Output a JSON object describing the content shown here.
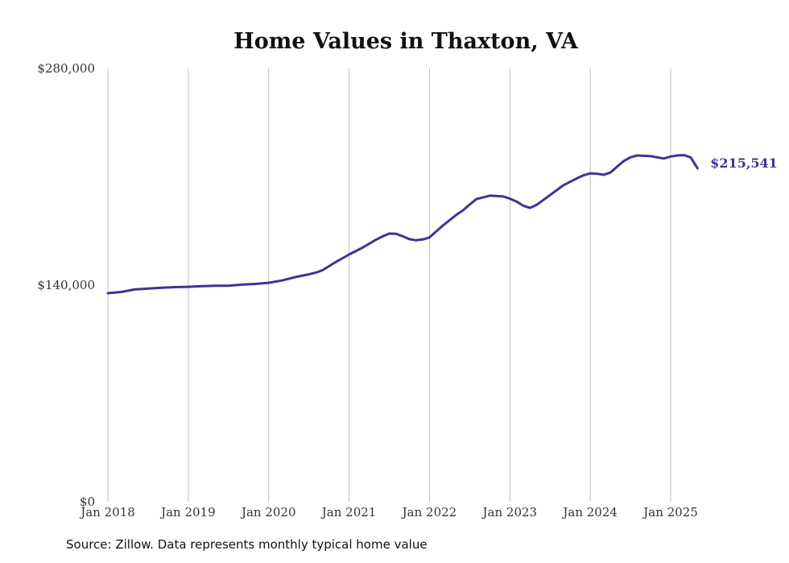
{
  "chart_data": {
    "type": "line",
    "title": "Home Values in Thaxton, VA",
    "xlabel": "",
    "ylabel": "",
    "ylim": [
      0,
      280000
    ],
    "y_ticks": [
      0,
      140000,
      280000
    ],
    "y_tick_labels": [
      "$0",
      "$140,000",
      "$280,000"
    ],
    "x_ticks": [
      "2018-01",
      "2019-01",
      "2020-01",
      "2021-01",
      "2022-01",
      "2023-01",
      "2024-01",
      "2025-01"
    ],
    "x_tick_labels": [
      "Jan 2018",
      "Jan 2019",
      "Jan 2020",
      "Jan 2021",
      "Jan 2022",
      "Jan 2023",
      "Jan 2024",
      "Jan 2025"
    ],
    "grid": "vertical",
    "line_color": "#3d3590",
    "end_label": "$215,541",
    "series": [
      {
        "x": [
          "2018-01",
          "2018-03",
          "2018-05",
          "2018-07",
          "2018-09",
          "2018-11",
          "2019-01",
          "2019-03",
          "2019-05",
          "2019-07",
          "2019-09",
          "2019-11",
          "2020-01",
          "2020-03",
          "2020-05",
          "2020-07",
          "2020-08",
          "2020-09",
          "2020-11",
          "2021-01",
          "2021-03",
          "2021-05",
          "2021-06",
          "2021-07",
          "2021-08",
          "2021-09",
          "2021-10",
          "2021-11",
          "2021-12",
          "2022-01",
          "2022-03",
          "2022-05",
          "2022-06",
          "2022-07",
          "2022-08",
          "2022-10",
          "2022-12",
          "2023-01",
          "2023-02",
          "2023-03",
          "2023-04",
          "2023-05",
          "2023-07",
          "2023-09",
          "2023-11",
          "2023-12",
          "2024-01",
          "2024-02",
          "2024-03",
          "2024-04",
          "2024-05",
          "2024-06",
          "2024-07",
          "2024-08",
          "2024-10",
          "2024-12",
          "2025-01",
          "2025-02",
          "2025-03",
          "2025-04",
          "2025-05"
        ],
        "values": [
          134800,
          135600,
          137200,
          137800,
          138300,
          138700,
          138900,
          139300,
          139600,
          139600,
          140300,
          140800,
          141500,
          143000,
          145200,
          147000,
          148000,
          149600,
          154900,
          159800,
          164200,
          169300,
          171500,
          173300,
          173200,
          171600,
          169700,
          169000,
          169500,
          170800,
          178500,
          185400,
          188300,
          192100,
          195600,
          197800,
          197300,
          195900,
          194000,
          191300,
          189900,
          191900,
          198200,
          204600,
          209000,
          211000,
          212200,
          212000,
          211300,
          212700,
          216500,
          220200,
          222600,
          223800,
          223300,
          221800,
          223100,
          223800,
          224000,
          222500,
          215541
        ]
      }
    ],
    "source_note": "Source: Zillow. Data represents monthly typical home value"
  }
}
